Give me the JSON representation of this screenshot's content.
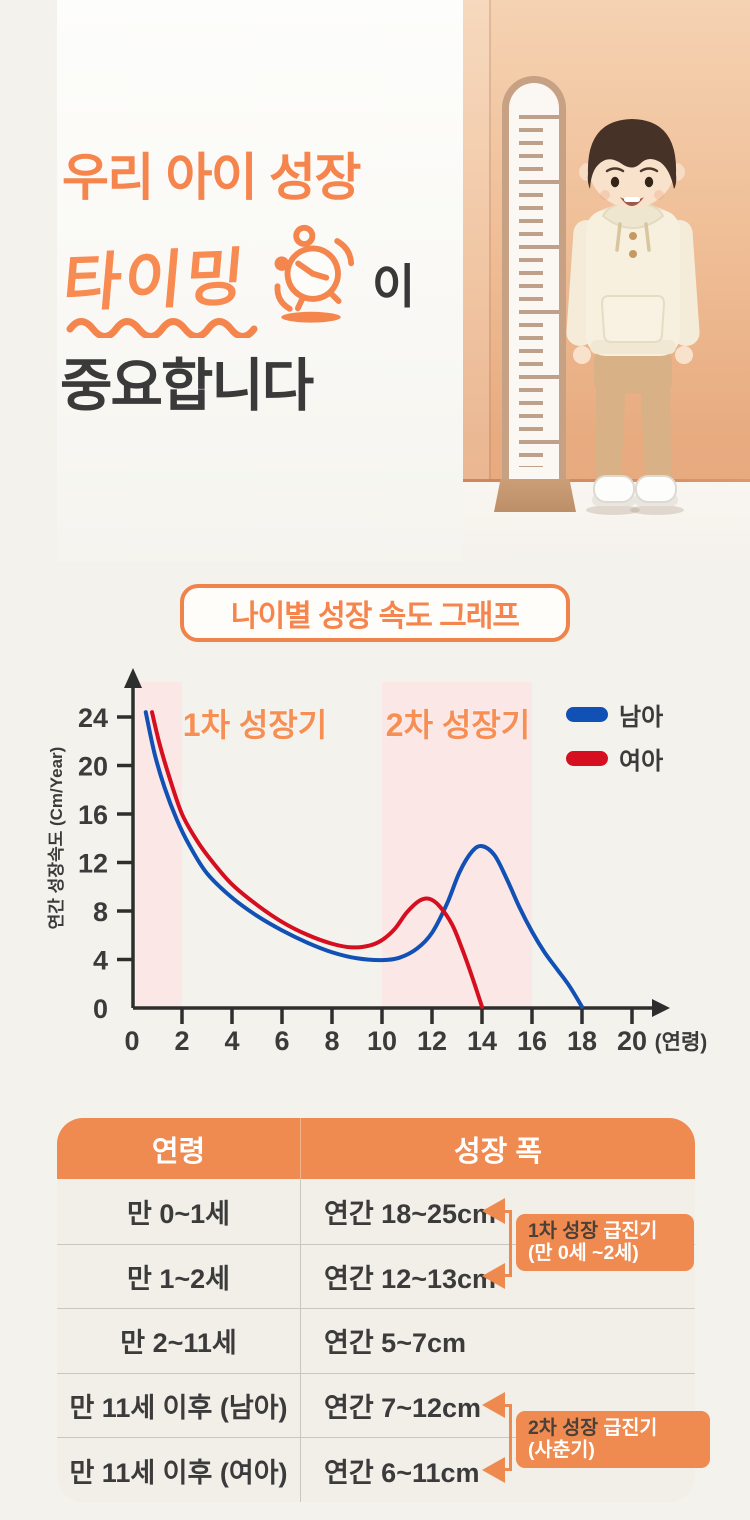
{
  "hero": {
    "title_line1": "우리 아이 성장",
    "highlight_word": "타이밍",
    "particle": "이",
    "title_line2": "중요합니다"
  },
  "chart_section": {
    "title_badge": "나이별 성장 속도 그래프"
  },
  "chart_data": {
    "type": "line",
    "title": "나이별 성장 속도 그래프",
    "xlabel": "(연령)",
    "ylabel": "연간 성장속도 (Cm/Year)",
    "xlim": [
      0,
      21.6
    ],
    "ylim": [
      0,
      26
    ],
    "x_ticks": [
      0,
      2,
      4,
      6,
      8,
      10,
      12,
      14,
      16,
      18,
      20
    ],
    "y_ticks": [
      0,
      4,
      8,
      12,
      16,
      20,
      24
    ],
    "grid": false,
    "legend_position": "top-right",
    "regions": [
      {
        "label": "1차 성장기",
        "x_from": 0.15,
        "x_to": 2,
        "color": "#FBE7E5"
      },
      {
        "label": "2차 성장기",
        "x_from": 10,
        "x_to": 16,
        "color": "#FBE7E5"
      }
    ],
    "series": [
      {
        "name": "남아",
        "color": "#1150B4",
        "points": [
          [
            0.55,
            24.4
          ],
          [
            0.9,
            21.0
          ],
          [
            1.3,
            18.2
          ],
          [
            1.8,
            15.5
          ],
          [
            2.3,
            13.4
          ],
          [
            3,
            11.1
          ],
          [
            4,
            9.1
          ],
          [
            5,
            7.6
          ],
          [
            6,
            6.4
          ],
          [
            7,
            5.4
          ],
          [
            8,
            4.6
          ],
          [
            9,
            4.1
          ],
          [
            10,
            3.95
          ],
          [
            10.7,
            4.15
          ],
          [
            11.4,
            4.9
          ],
          [
            12,
            6.2
          ],
          [
            12.6,
            8.6
          ],
          [
            13.1,
            11.2
          ],
          [
            13.6,
            12.9
          ],
          [
            14,
            13.35
          ],
          [
            14.5,
            12.6
          ],
          [
            15,
            10.6
          ],
          [
            15.5,
            8.3
          ],
          [
            16,
            6.3
          ],
          [
            16.5,
            4.6
          ],
          [
            17,
            3.2
          ],
          [
            17.5,
            1.8
          ],
          [
            18,
            0.1
          ]
        ]
      },
      {
        "name": "여아",
        "color": "#D50F1F",
        "points": [
          [
            0.8,
            24.4
          ],
          [
            1.1,
            21.8
          ],
          [
            1.5,
            19.0
          ],
          [
            2,
            16.0
          ],
          [
            2.6,
            13.8
          ],
          [
            3.2,
            12.1
          ],
          [
            4,
            10.2
          ],
          [
            5,
            8.5
          ],
          [
            6,
            7.1
          ],
          [
            7,
            6.05
          ],
          [
            8,
            5.3
          ],
          [
            8.8,
            5.0
          ],
          [
            9.5,
            5.15
          ],
          [
            10,
            5.6
          ],
          [
            10.5,
            6.5
          ],
          [
            11,
            7.9
          ],
          [
            11.5,
            8.85
          ],
          [
            11.9,
            9.0
          ],
          [
            12.3,
            8.4
          ],
          [
            12.8,
            6.9
          ],
          [
            13.2,
            4.9
          ],
          [
            13.6,
            2.6
          ],
          [
            14,
            0.1
          ]
        ]
      }
    ],
    "legend": [
      {
        "label": "남아",
        "color": "#1150B4"
      },
      {
        "label": "여아",
        "color": "#D50F1F"
      }
    ]
  },
  "table": {
    "headers": [
      "연령",
      "성장 폭"
    ],
    "rows": [
      {
        "age": "만 0~1세",
        "growth": "연간 18~25cm",
        "callout_arrow": true
      },
      {
        "age": "만 1~2세",
        "growth": "연간 12~13cm",
        "callout_arrow": true
      },
      {
        "age": "만 2~11세",
        "growth": "연간 5~7cm",
        "callout_arrow": false
      },
      {
        "age": "만 11세 이후 (남아)",
        "growth": "연간 7~12cm",
        "callout_arrow": true
      },
      {
        "age": "만 11세 이후 (여아)",
        "growth": "연간 6~11cm",
        "callout_arrow": true
      }
    ],
    "callouts": [
      {
        "prefix": "1차 성장 ",
        "highlight": "급진기",
        "subtitle": "(만 0세 ~2세)"
      },
      {
        "prefix": "2차 성장 ",
        "highlight": "급진기",
        "subtitle": "(사춘기)"
      }
    ]
  },
  "colors": {
    "accent_orange": "#F0834C",
    "table_header_orange": "#EF8A51",
    "boy_blue": "#1150B4",
    "girl_red": "#D50F1F",
    "region_pink": "#FBE7E5",
    "dark_text": "#3B3B3B",
    "page_bg": "#F4F2EC"
  }
}
